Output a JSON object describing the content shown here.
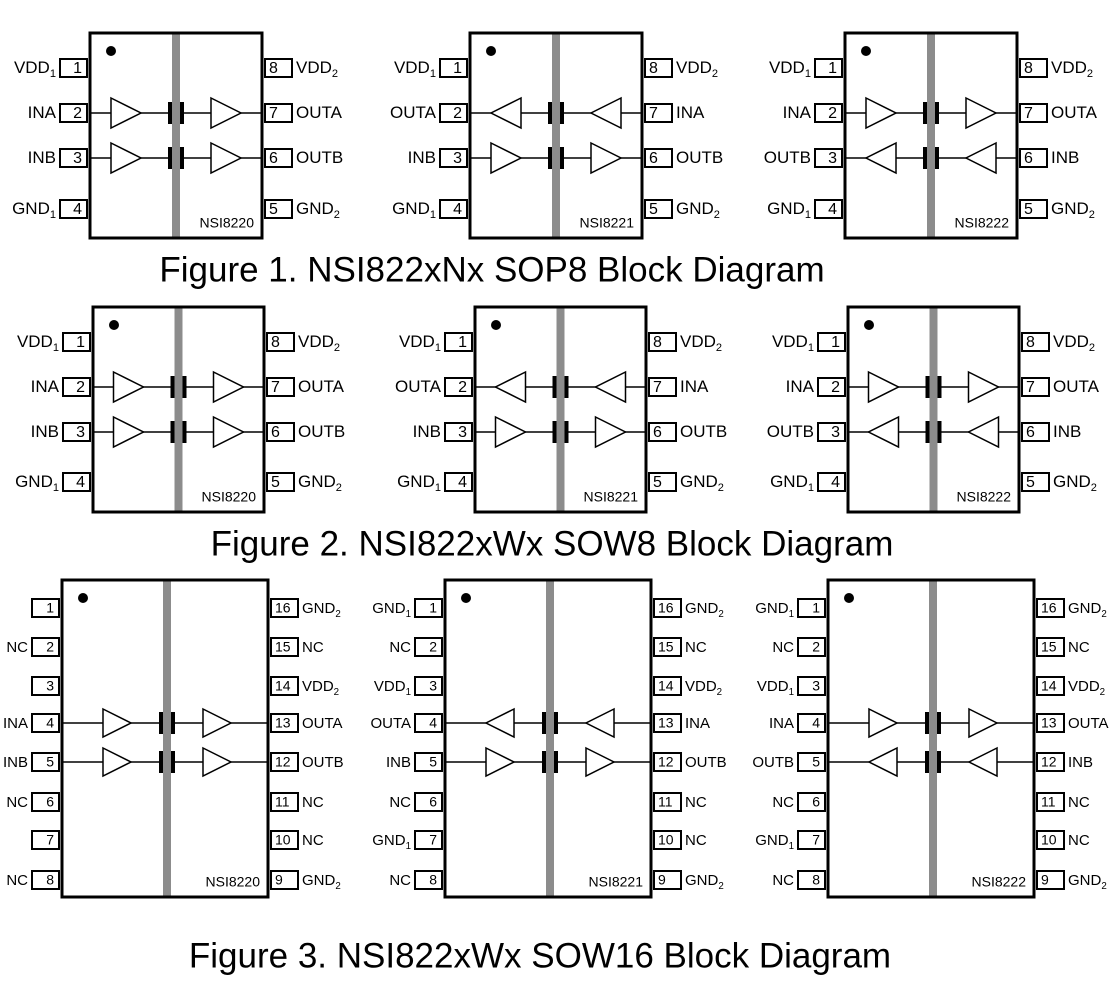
{
  "figures": [
    {
      "caption": "Figure 1. NSI822xNx SOP8 Block Diagram",
      "packages": [
        {
          "part": "NSI8220",
          "left_pins": [
            {
              "number": 1,
              "label": "VDD",
              "sub": "1"
            },
            {
              "number": 2,
              "label": "INA"
            },
            {
              "number": 3,
              "label": "INB"
            },
            {
              "number": 4,
              "label": "GND",
              "sub": "1"
            }
          ],
          "right_pins": [
            {
              "number": 8,
              "label": "VDD",
              "sub": "2"
            },
            {
              "number": 7,
              "label": "OUTA"
            },
            {
              "number": 6,
              "label": "OUTB"
            },
            {
              "number": 5,
              "label": "GND",
              "sub": "2"
            }
          ]
        },
        {
          "part": "NSI8221",
          "left_pins": [
            {
              "number": 1,
              "label": "VDD",
              "sub": "1"
            },
            {
              "number": 2,
              "label": "OUTA"
            },
            {
              "number": 3,
              "label": "INB"
            },
            {
              "number": 4,
              "label": "GND",
              "sub": "1"
            }
          ],
          "right_pins": [
            {
              "number": 8,
              "label": "VDD",
              "sub": "2"
            },
            {
              "number": 7,
              "label": "INA"
            },
            {
              "number": 6,
              "label": "OUTB"
            },
            {
              "number": 5,
              "label": "GND",
              "sub": "2"
            }
          ]
        },
        {
          "part": "NSI8222",
          "left_pins": [
            {
              "number": 1,
              "label": "VDD",
              "sub": "1"
            },
            {
              "number": 2,
              "label": "INA"
            },
            {
              "number": 3,
              "label": "OUTB"
            },
            {
              "number": 4,
              "label": "GND",
              "sub": "1"
            }
          ],
          "right_pins": [
            {
              "number": 8,
              "label": "VDD",
              "sub": "2"
            },
            {
              "number": 7,
              "label": "OUTA"
            },
            {
              "number": 6,
              "label": "INB"
            },
            {
              "number": 5,
              "label": "GND",
              "sub": "2"
            }
          ]
        }
      ]
    },
    {
      "caption": "Figure 2. NSI822xWx SOW8 Block Diagram",
      "packages": [
        {
          "part": "NSI8220",
          "left_pins": [
            {
              "number": 1,
              "label": "VDD",
              "sub": "1"
            },
            {
              "number": 2,
              "label": "INA"
            },
            {
              "number": 3,
              "label": "INB"
            },
            {
              "number": 4,
              "label": "GND",
              "sub": "1"
            }
          ],
          "right_pins": [
            {
              "number": 8,
              "label": "VDD",
              "sub": "2"
            },
            {
              "number": 7,
              "label": "OUTA"
            },
            {
              "number": 6,
              "label": "OUTB"
            },
            {
              "number": 5,
              "label": "GND",
              "sub": "2"
            }
          ]
        },
        {
          "part": "NSI8221",
          "left_pins": [
            {
              "number": 1,
              "label": "VDD",
              "sub": "1"
            },
            {
              "number": 2,
              "label": "OUTA"
            },
            {
              "number": 3,
              "label": "INB"
            },
            {
              "number": 4,
              "label": "GND",
              "sub": "1"
            }
          ],
          "right_pins": [
            {
              "number": 8,
              "label": "VDD",
              "sub": "2"
            },
            {
              "number": 7,
              "label": "INA"
            },
            {
              "number": 6,
              "label": "OUTB"
            },
            {
              "number": 5,
              "label": "GND",
              "sub": "2"
            }
          ]
        },
        {
          "part": "NSI8222",
          "left_pins": [
            {
              "number": 1,
              "label": "VDD",
              "sub": "1"
            },
            {
              "number": 2,
              "label": "INA"
            },
            {
              "number": 3,
              "label": "OUTB"
            },
            {
              "number": 4,
              "label": "GND",
              "sub": "1"
            }
          ],
          "right_pins": [
            {
              "number": 8,
              "label": "VDD",
              "sub": "2"
            },
            {
              "number": 7,
              "label": "OUTA"
            },
            {
              "number": 6,
              "label": "INB"
            },
            {
              "number": 5,
              "label": "GND",
              "sub": "2"
            }
          ]
        }
      ]
    },
    {
      "caption": "Figure 3. NSI822xWx SOW16 Block Diagram",
      "packages": [
        {
          "part": "NSI8220",
          "left_pins": [
            {
              "number": 1
            },
            {
              "number": 2,
              "label": "NC"
            },
            {
              "number": 3
            },
            {
              "number": 4,
              "label": "INA"
            },
            {
              "number": 5,
              "label": "INB"
            },
            {
              "number": 6,
              "label": "NC"
            },
            {
              "number": 7
            },
            {
              "number": 8,
              "label": "NC"
            }
          ],
          "right_pins": [
            {
              "number": 16,
              "label": "GND",
              "sub": "2"
            },
            {
              "number": 15,
              "label": "NC"
            },
            {
              "number": 14,
              "label": "VDD",
              "sub": "2"
            },
            {
              "number": 13,
              "label": "OUTA"
            },
            {
              "number": 12,
              "label": "OUTB"
            },
            {
              "number": 11,
              "label": "NC"
            },
            {
              "number": 10,
              "label": "NC"
            },
            {
              "number": 9,
              "label": "GND",
              "sub": "2"
            }
          ]
        },
        {
          "part": "NSI8221",
          "left_pins": [
            {
              "number": 1,
              "label": "GND",
              "sub": "1"
            },
            {
              "number": 2,
              "label": "NC"
            },
            {
              "number": 3,
              "label": "VDD",
              "sub": "1"
            },
            {
              "number": 4,
              "label": "OUTA"
            },
            {
              "number": 5,
              "label": "INB"
            },
            {
              "number": 6,
              "label": "NC"
            },
            {
              "number": 7,
              "label": "GND",
              "sub": "1"
            },
            {
              "number": 8,
              "label": "NC"
            }
          ],
          "right_pins": [
            {
              "number": 16,
              "label": "GND",
              "sub": "2"
            },
            {
              "number": 15,
              "label": "NC"
            },
            {
              "number": 14,
              "label": "VDD",
              "sub": "2"
            },
            {
              "number": 13,
              "label": "INA"
            },
            {
              "number": 12,
              "label": "OUTB"
            },
            {
              "number": 11,
              "label": "NC"
            },
            {
              "number": 10,
              "label": "NC"
            },
            {
              "number": 9,
              "label": "GND",
              "sub": "2"
            }
          ]
        },
        {
          "part": "NSI8222",
          "left_pins": [
            {
              "number": 1,
              "label": "GND",
              "sub": "1"
            },
            {
              "number": 2,
              "label": "NC"
            },
            {
              "number": 3,
              "label": "VDD",
              "sub": "1"
            },
            {
              "number": 4,
              "label": "INA"
            },
            {
              "number": 5,
              "label": "OUTB"
            },
            {
              "number": 6,
              "label": "NC"
            },
            {
              "number": 7,
              "label": "GND",
              "sub": "1"
            },
            {
              "number": 8,
              "label": "NC"
            }
          ],
          "right_pins": [
            {
              "number": 16,
              "label": "GND",
              "sub": "2"
            },
            {
              "number": 15,
              "label": "NC"
            },
            {
              "number": 14,
              "label": "VDD",
              "sub": "2"
            },
            {
              "number": 13,
              "label": "OUTA"
            },
            {
              "number": 12,
              "label": "INB"
            },
            {
              "number": 11,
              "label": "NC"
            },
            {
              "number": 10,
              "label": "NC"
            },
            {
              "number": 9,
              "label": "GND",
              "sub": "2"
            }
          ]
        }
      ]
    }
  ]
}
